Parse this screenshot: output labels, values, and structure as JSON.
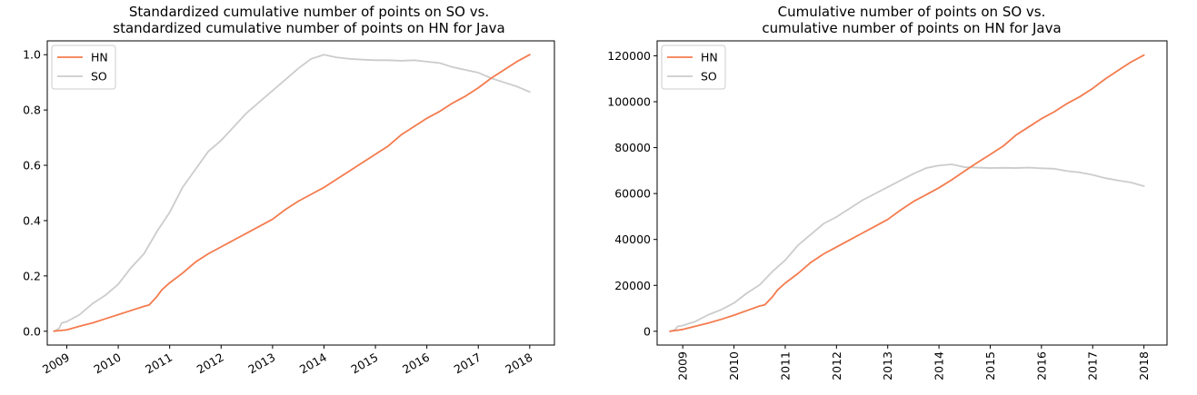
{
  "chart_data": [
    {
      "type": "line",
      "title_lines": [
        "Standardized cumulative number of points on SO vs.",
        "standardized cumulative number of points on HN for Java"
      ],
      "xlabel": "",
      "ylabel": "",
      "x_ticks": [
        "2009",
        "2010",
        "2011",
        "2012",
        "2013",
        "2014",
        "2015",
        "2016",
        "2017",
        "2018"
      ],
      "y_ticks": [
        "0.0",
        "0.2",
        "0.4",
        "0.6",
        "0.8",
        "1.0"
      ],
      "xlim": [
        2008.62,
        2018.48
      ],
      "ylim": [
        -0.05,
        1.05
      ],
      "legend": "top-left",
      "x_tick_rotation": 30,
      "series": [
        {
          "name": "HN",
          "color": "#f47b4e",
          "x": [
            2008.75,
            2009.0,
            2009.25,
            2009.5,
            2009.75,
            2010.0,
            2010.25,
            2010.5,
            2010.6,
            2010.75,
            2010.85,
            2011.0,
            2011.25,
            2011.5,
            2011.75,
            2012.0,
            2012.25,
            2012.5,
            2012.75,
            2013.0,
            2013.25,
            2013.5,
            2013.75,
            2014.0,
            2014.25,
            2014.5,
            2014.75,
            2015.0,
            2015.25,
            2015.5,
            2015.75,
            2016.0,
            2016.25,
            2016.5,
            2016.75,
            2017.0,
            2017.25,
            2017.5,
            2017.75,
            2018.0
          ],
          "y": [
            0.0,
            0.005,
            0.018,
            0.03,
            0.045,
            0.06,
            0.075,
            0.09,
            0.095,
            0.125,
            0.15,
            0.175,
            0.21,
            0.25,
            0.28,
            0.305,
            0.33,
            0.355,
            0.38,
            0.405,
            0.44,
            0.47,
            0.495,
            0.52,
            0.55,
            0.58,
            0.61,
            0.64,
            0.67,
            0.71,
            0.74,
            0.77,
            0.795,
            0.825,
            0.85,
            0.88,
            0.915,
            0.945,
            0.975,
            1.0
          ]
        },
        {
          "name": "SO",
          "color": "#cccccc",
          "x": [
            2008.75,
            2008.85,
            2008.9,
            2009.0,
            2009.25,
            2009.5,
            2009.75,
            2010.0,
            2010.25,
            2010.5,
            2010.75,
            2011.0,
            2011.25,
            2011.5,
            2011.75,
            2012.0,
            2012.25,
            2012.5,
            2012.75,
            2013.0,
            2013.25,
            2013.5,
            2013.75,
            2014.0,
            2014.25,
            2014.5,
            2014.75,
            2015.0,
            2015.25,
            2015.5,
            2015.75,
            2016.0,
            2016.25,
            2016.5,
            2016.75,
            2017.0,
            2017.25,
            2017.5,
            2017.75,
            2018.0
          ],
          "y": [
            0.0,
            0.01,
            0.03,
            0.035,
            0.06,
            0.1,
            0.13,
            0.17,
            0.23,
            0.28,
            0.36,
            0.43,
            0.52,
            0.585,
            0.65,
            0.69,
            0.74,
            0.79,
            0.83,
            0.87,
            0.91,
            0.95,
            0.985,
            1.0,
            0.99,
            0.985,
            0.982,
            0.98,
            0.98,
            0.978,
            0.98,
            0.975,
            0.97,
            0.955,
            0.945,
            0.935,
            0.915,
            0.9,
            0.885,
            0.865
          ]
        }
      ]
    },
    {
      "type": "line",
      "title_lines": [
        "Cumulative number of points on SO vs.",
        "cumulative number of points on HN for Java"
      ],
      "xlabel": "",
      "ylabel": "",
      "x_ticks": [
        "2009",
        "2010",
        "2011",
        "2012",
        "2013",
        "2014",
        "2015",
        "2016",
        "2017",
        "2018"
      ],
      "y_ticks": [
        "0",
        "20000",
        "40000",
        "60000",
        "80000",
        "100000",
        "120000"
      ],
      "xlim": [
        2008.5,
        2018.45
      ],
      "ylim": [
        -6000,
        126500
      ],
      "legend": "top-left",
      "x_tick_rotation": 90,
      "series": [
        {
          "name": "HN",
          "color": "#f47b4e",
          "x": [
            2008.75,
            2009.0,
            2009.25,
            2009.5,
            2009.75,
            2010.0,
            2010.25,
            2010.5,
            2010.6,
            2010.75,
            2010.85,
            2011.0,
            2011.25,
            2011.5,
            2011.75,
            2012.0,
            2012.25,
            2012.5,
            2012.75,
            2013.0,
            2013.25,
            2013.5,
            2013.75,
            2014.0,
            2014.25,
            2014.5,
            2014.75,
            2015.0,
            2015.25,
            2015.5,
            2015.75,
            2016.0,
            2016.25,
            2016.5,
            2016.75,
            2017.0,
            2017.25,
            2017.5,
            2017.75,
            2018.0
          ],
          "y": [
            0,
            800,
            2200,
            3600,
            5200,
            7000,
            9000,
            11000,
            11500,
            15000,
            18000,
            21000,
            25200,
            30000,
            33700,
            36700,
            39700,
            42700,
            45700,
            48700,
            52800,
            56500,
            59500,
            62500,
            66000,
            69800,
            73500,
            77000,
            80600,
            85400,
            89000,
            92600,
            95600,
            99200,
            102200,
            105800,
            110000,
            113700,
            117300,
            120300
          ]
        },
        {
          "name": "SO",
          "color": "#cccccc",
          "x": [
            2008.75,
            2008.85,
            2008.9,
            2009.0,
            2009.25,
            2009.5,
            2009.75,
            2010.0,
            2010.25,
            2010.5,
            2010.75,
            2011.0,
            2011.25,
            2011.5,
            2011.75,
            2012.0,
            2012.25,
            2012.5,
            2012.75,
            2013.0,
            2013.25,
            2013.5,
            2013.75,
            2014.0,
            2014.25,
            2014.5,
            2014.75,
            2015.0,
            2015.25,
            2015.5,
            2015.75,
            2016.0,
            2016.25,
            2016.5,
            2016.75,
            2017.0,
            2017.25,
            2017.5,
            2017.75,
            2018.0
          ],
          "y": [
            0,
            700,
            2100,
            2500,
            4300,
            7200,
            9400,
            12300,
            16600,
            20200,
            26000,
            31000,
            37500,
            42200,
            46900,
            49800,
            53400,
            57000,
            59900,
            62800,
            65700,
            68600,
            71100,
            72200,
            72700,
            71500,
            71300,
            71100,
            71200,
            71100,
            71300,
            71000,
            70800,
            69800,
            69200,
            68100,
            66700,
            65700,
            64800,
            63200
          ]
        }
      ]
    }
  ]
}
